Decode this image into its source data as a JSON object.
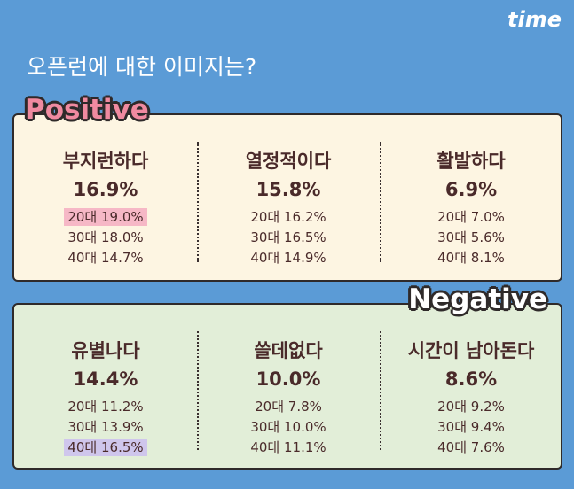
{
  "logo": "time",
  "title": "오픈런에 대한 이미지는?",
  "sections": [
    {
      "label": "Positive",
      "label_color": "#f08aa0",
      "background": "#fdf5e2",
      "items": [
        {
          "name": "부지런하다",
          "percent": "16.9%",
          "rows": [
            {
              "age": "20대",
              "value": "19.0%",
              "highlight": "#f6b8c6"
            },
            {
              "age": "30대",
              "value": "18.0%"
            },
            {
              "age": "40대",
              "value": "14.7%"
            }
          ]
        },
        {
          "name": "열정적이다",
          "percent": "15.8%",
          "rows": [
            {
              "age": "20대",
              "value": "16.2%"
            },
            {
              "age": "30대",
              "value": "16.5%"
            },
            {
              "age": "40대",
              "value": "14.9%"
            }
          ]
        },
        {
          "name": "활발하다",
          "percent": "6.9%",
          "rows": [
            {
              "age": "20대",
              "value": "7.0%"
            },
            {
              "age": "30대",
              "value": "5.6%"
            },
            {
              "age": "40대",
              "value": "8.1%"
            }
          ]
        }
      ]
    },
    {
      "label": "Negative",
      "label_color": "#ffffff",
      "background": "#e2eed8",
      "items": [
        {
          "name": "유별나다",
          "percent": "14.4%",
          "rows": [
            {
              "age": "20대",
              "value": "11.2%"
            },
            {
              "age": "30대",
              "value": "13.9%"
            },
            {
              "age": "40대",
              "value": "16.5%",
              "highlight": "#cfc6ec"
            }
          ]
        },
        {
          "name": "쓸데없다",
          "percent": "10.0%",
          "rows": [
            {
              "age": "20대",
              "value": "7.8%"
            },
            {
              "age": "30대",
              "value": "10.0%"
            },
            {
              "age": "40대",
              "value": "11.1%"
            }
          ]
        },
        {
          "name": "시간이 남아돈다",
          "percent": "8.6%",
          "rows": [
            {
              "age": "20대",
              "value": "9.2%"
            },
            {
              "age": "30대",
              "value": "9.4%"
            },
            {
              "age": "40대",
              "value": "7.6%"
            }
          ]
        }
      ]
    }
  ]
}
